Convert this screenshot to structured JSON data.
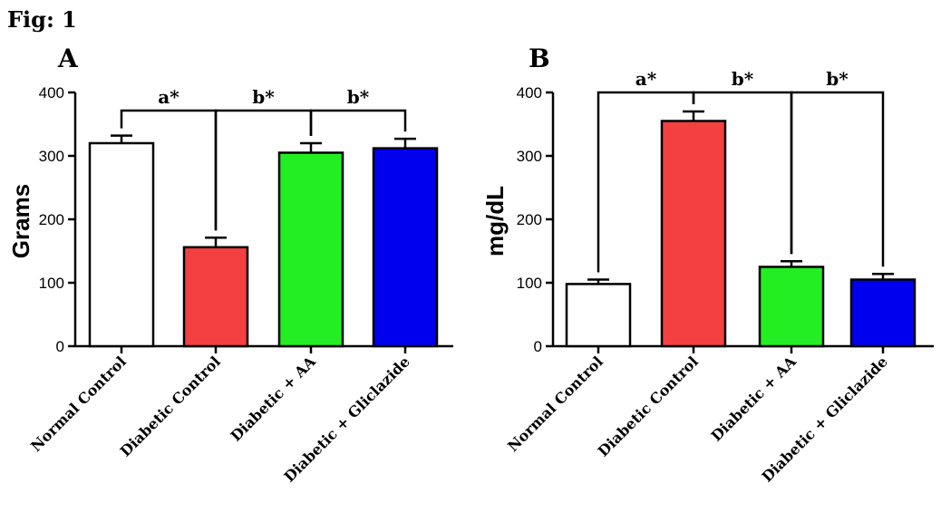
{
  "figure_label": "Fig: 1",
  "chart_data": [
    {
      "type": "bar",
      "panel": "A",
      "ylabel": "Grams",
      "ylim": [
        0,
        400
      ],
      "yticks": [
        0,
        100,
        200,
        300,
        400
      ],
      "categories": [
        "Normal Control",
        "Diabetic Control",
        "Diabetic + AA",
        "Diabetic + Gliclazide"
      ],
      "values": [
        320,
        156,
        305,
        312
      ],
      "errors": [
        12,
        15,
        15,
        15
      ],
      "colors": [
        "#ffffff",
        "#f44040",
        "#22ee22",
        "#0000ee"
      ],
      "annotations": [
        {
          "label": "a*",
          "from": 0,
          "to": 1
        },
        {
          "label": "b*",
          "from": 1,
          "to": 2
        },
        {
          "label": "b*",
          "from": 2,
          "to": 3
        }
      ]
    },
    {
      "type": "bar",
      "panel": "B",
      "ylabel": "mg/dL",
      "ylim": [
        0,
        400
      ],
      "yticks": [
        0,
        100,
        200,
        300,
        400
      ],
      "categories": [
        "Normal Control",
        "Diabetic Control",
        "Diabetic + AA",
        "Diabetic + Gliclazide"
      ],
      "values": [
        98,
        355,
        125,
        105
      ],
      "errors": [
        7,
        15,
        9,
        9
      ],
      "colors": [
        "#ffffff",
        "#f44040",
        "#22ee22",
        "#0000ee"
      ],
      "annotations": [
        {
          "label": "a*",
          "from": 0,
          "to": 1
        },
        {
          "label": "b*",
          "from": 1,
          "to": 2
        },
        {
          "label": "b*",
          "from": 2,
          "to": 3
        }
      ]
    }
  ]
}
